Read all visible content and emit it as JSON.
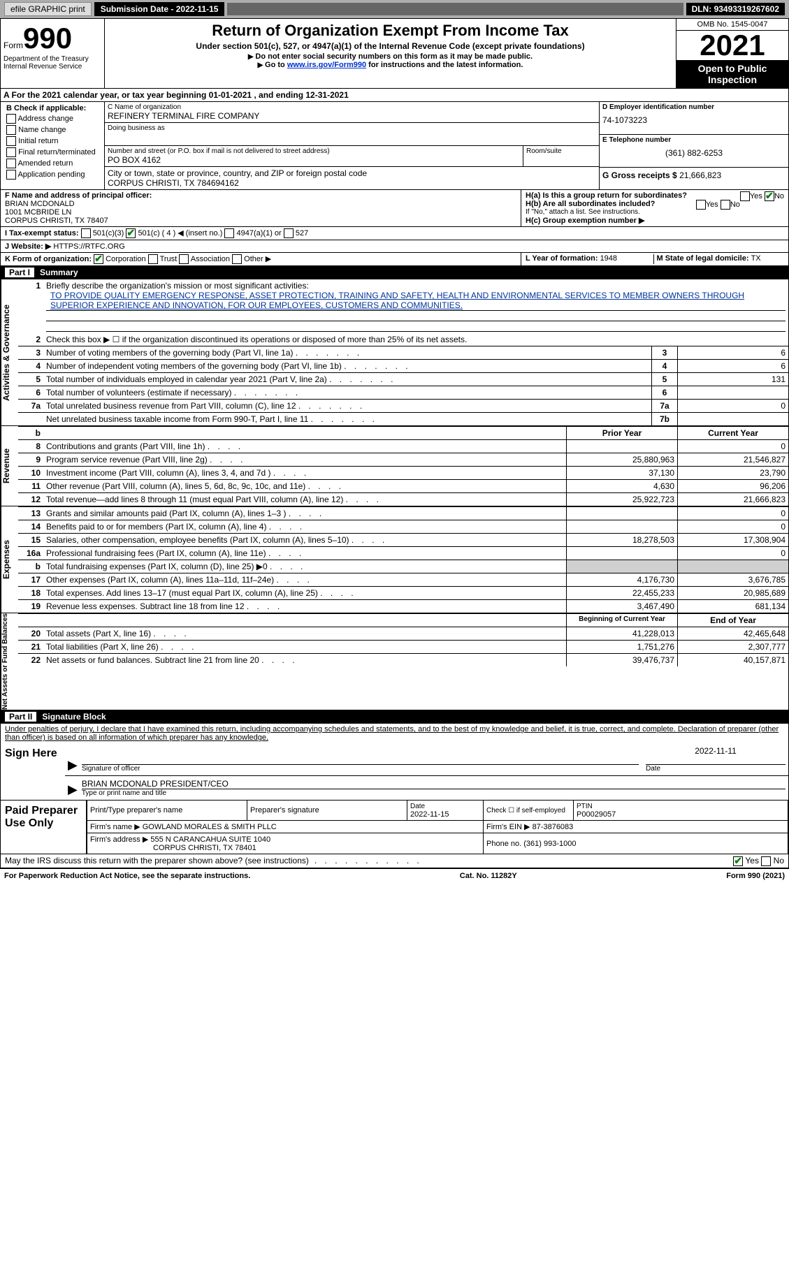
{
  "topbar": {
    "efile": "efile GRAPHIC print",
    "print_btn": "print",
    "sub_date_label": "Submission Date - ",
    "sub_date": "2022-11-15",
    "dln_label": "DLN: ",
    "dln": "93493319267602"
  },
  "header": {
    "form_label": "Form",
    "form_number": "990",
    "dept": "Department of the Treasury",
    "irs": "Internal Revenue Service",
    "title": "Return of Organization Exempt From Income Tax",
    "subtitle": "Under section 501(c), 527, or 4947(a)(1) of the Internal Revenue Code (except private foundations)",
    "note1": "Do not enter social security numbers on this form as it may be made public.",
    "note2_pre": "Go to ",
    "note2_link": "www.irs.gov/Form990",
    "note2_post": " for instructions and the latest information.",
    "omb": "OMB No. 1545-0047",
    "year": "2021",
    "otpi": "Open to Public Inspection"
  },
  "period": {
    "line": "A For the 2021 calendar year, or tax year beginning 01-01-2021   , and ending 12-31-2021"
  },
  "blockB": {
    "label": "B Check if applicable:",
    "items": [
      "Address change",
      "Name change",
      "Initial return",
      "Final return/terminated",
      "Amended return",
      "Application pending"
    ]
  },
  "blockC": {
    "name_lbl": "C Name of organization",
    "name": "REFINERY TERMINAL FIRE COMPANY",
    "dba_lbl": "Doing business as",
    "dba": "",
    "street_lbl": "Number and street (or P.O. box if mail is not delivered to street address)",
    "room_lbl": "Room/suite",
    "street": "PO BOX 4162",
    "city_lbl": "City or town, state or province, country, and ZIP or foreign postal code",
    "city": "CORPUS CHRISTI, TX  784694162"
  },
  "blockD": {
    "ein_lbl": "D Employer identification number",
    "ein": "74-1073223",
    "phone_lbl": "E Telephone number",
    "phone": "(361) 882-6253",
    "gross_lbl": "G Gross receipts $ ",
    "gross": "21,666,823"
  },
  "blockF": {
    "lbl": "F Name and address of principal officer:",
    "name": "BRIAN MCDONALD",
    "addr1": "1001 MCBRIDE LN",
    "addr2": "CORPUS CHRISTI, TX  78407"
  },
  "blockH": {
    "ha_lbl": "H(a)  Is this a group return for subordinates?",
    "hb_lbl": "H(b)  Are all subordinates included?",
    "hb_note": "If \"No,\" attach a list. See instructions.",
    "hc_lbl": "H(c)  Group exemption number ▶",
    "yes": "Yes",
    "no": "No"
  },
  "taxExempt": {
    "lbl": "I  Tax-exempt status:",
    "o1": "501(c)(3)",
    "o2": "501(c) ( 4 ) ◀ (insert no.)",
    "o3": "4947(a)(1) or",
    "o4": "527"
  },
  "website": {
    "lbl": "J  Website: ▶",
    "val": "HTTPS://RTFC.ORG"
  },
  "blockK": {
    "lbl": "K Form of organization:",
    "o1": "Corporation",
    "o2": "Trust",
    "o3": "Association",
    "o4": "Other ▶"
  },
  "blockL": {
    "lbl": "L Year of formation: ",
    "val": "1948"
  },
  "blockM": {
    "lbl": "M State of legal domicile: ",
    "val": "TX"
  },
  "partI": {
    "num": "Part I",
    "title": "Summary"
  },
  "summary": {
    "side1": "Activities & Governance",
    "side2": "Revenue",
    "side3": "Expenses",
    "side4": "Net Assets or Fund Balances",
    "line1_lbl": "Briefly describe the organization's mission or most significant activities:",
    "mission": "TO PROVIDE QUALITY EMERGENCY RESPONSE, ASSET PROTECTION, TRAINING AND SAFETY, HEALTH AND ENVIRONMENTAL SERVICES TO MEMBER OWNERS THROUGH SUPERIOR EXPERIENCE AND INNOVATION, FOR OUR EMPLOYEES, CUSTOMERS AND COMMUNITIES.",
    "line2": "Check this box ▶ ☐ if the organization discontinued its operations or disposed of more than 25% of its net assets.",
    "rows": [
      {
        "n": "3",
        "t": "Number of voting members of the governing body (Part VI, line 1a)",
        "b": "3",
        "v": "6"
      },
      {
        "n": "4",
        "t": "Number of independent voting members of the governing body (Part VI, line 1b)",
        "b": "4",
        "v": "6"
      },
      {
        "n": "5",
        "t": "Total number of individuals employed in calendar year 2021 (Part V, line 2a)",
        "b": "5",
        "v": "131"
      },
      {
        "n": "6",
        "t": "Total number of volunteers (estimate if necessary)",
        "b": "6",
        "v": ""
      },
      {
        "n": "7a",
        "t": "Total unrelated business revenue from Part VIII, column (C), line 12",
        "b": "7a",
        "v": "0"
      },
      {
        "n": "",
        "t": "Net unrelated business taxable income from Form 990-T, Part I, line 11",
        "b": "7b",
        "v": ""
      }
    ],
    "py_hdr": "Prior Year",
    "cy_hdr": "Current Year",
    "rev_rows": [
      {
        "n": "8",
        "t": "Contributions and grants (Part VIII, line 1h)",
        "py": "",
        "cy": "0"
      },
      {
        "n": "9",
        "t": "Program service revenue (Part VIII, line 2g)",
        "py": "25,880,963",
        "cy": "21,546,827"
      },
      {
        "n": "10",
        "t": "Investment income (Part VIII, column (A), lines 3, 4, and 7d )",
        "py": "37,130",
        "cy": "23,790"
      },
      {
        "n": "11",
        "t": "Other revenue (Part VIII, column (A), lines 5, 6d, 8c, 9c, 10c, and 11e)",
        "py": "4,630",
        "cy": "96,206"
      },
      {
        "n": "12",
        "t": "Total revenue—add lines 8 through 11 (must equal Part VIII, column (A), line 12)",
        "py": "25,922,723",
        "cy": "21,666,823"
      }
    ],
    "exp_rows": [
      {
        "n": "13",
        "t": "Grants and similar amounts paid (Part IX, column (A), lines 1–3 )",
        "py": "",
        "cy": "0"
      },
      {
        "n": "14",
        "t": "Benefits paid to or for members (Part IX, column (A), line 4)",
        "py": "",
        "cy": "0"
      },
      {
        "n": "15",
        "t": "Salaries, other compensation, employee benefits (Part IX, column (A), lines 5–10)",
        "py": "18,278,503",
        "cy": "17,308,904"
      },
      {
        "n": "16a",
        "t": "Professional fundraising fees (Part IX, column (A), line 11e)",
        "py": "",
        "cy": "0"
      },
      {
        "n": "b",
        "t": "Total fundraising expenses (Part IX, column (D), line 25) ▶0",
        "py": "shade",
        "cy": "shade"
      },
      {
        "n": "17",
        "t": "Other expenses (Part IX, column (A), lines 11a–11d, 11f–24e)",
        "py": "4,176,730",
        "cy": "3,676,785"
      },
      {
        "n": "18",
        "t": "Total expenses. Add lines 13–17 (must equal Part IX, column (A), line 25)",
        "py": "22,455,233",
        "cy": "20,985,689"
      },
      {
        "n": "19",
        "t": "Revenue less expenses. Subtract line 18 from line 12",
        "py": "3,467,490",
        "cy": "681,134"
      }
    ],
    "by_hdr": "Beginning of Current Year",
    "ey_hdr": "End of Year",
    "net_rows": [
      {
        "n": "20",
        "t": "Total assets (Part X, line 16)",
        "py": "41,228,013",
        "cy": "42,465,648"
      },
      {
        "n": "21",
        "t": "Total liabilities (Part X, line 26)",
        "py": "1,751,276",
        "cy": "2,307,777"
      },
      {
        "n": "22",
        "t": "Net assets or fund balances. Subtract line 21 from line 20",
        "py": "39,476,737",
        "cy": "40,157,871"
      }
    ]
  },
  "partII": {
    "num": "Part II",
    "title": "Signature Block"
  },
  "penalty": "Under penalties of perjury, I declare that I have examined this return, including accompanying schedules and statements, and to the best of my knowledge and belief, it is true, correct, and complete. Declaration of preparer (other than officer) is based on all information of which preparer has any knowledge.",
  "sign": {
    "here": "Sign Here",
    "sig_lbl": "Signature of officer",
    "date_lbl": "Date",
    "date": "2022-11-11",
    "name": "BRIAN MCDONALD  PRESIDENT/CEO",
    "name_lbl": "Type or print name and title"
  },
  "prep": {
    "lbl": "Paid Preparer Use Only",
    "h1": "Print/Type preparer's name",
    "h2": "Preparer's signature",
    "h3_lbl": "Date",
    "h3": "2022-11-15",
    "h4_lbl": "Check ☐ if self-employed",
    "h5_lbl": "PTIN",
    "h5": "P00029057",
    "firm_name_lbl": "Firm's name    ▶ ",
    "firm_name": "GOWLAND MORALES & SMITH PLLC",
    "firm_ein_lbl": "Firm's EIN ▶ ",
    "firm_ein": "87-3876083",
    "firm_addr_lbl": "Firm's address ▶ ",
    "firm_addr1": "555 N CARANCAHUA SUITE 1040",
    "firm_addr2": "CORPUS CHRISTI, TX  78401",
    "firm_phone_lbl": "Phone no. ",
    "firm_phone": "(361) 993-1000"
  },
  "irsDiscuss": {
    "q": "May the IRS discuss this return with the preparer shown above? (see instructions)",
    "yes": "Yes",
    "no": "No"
  },
  "footer": {
    "l": "For Paperwork Reduction Act Notice, see the separate instructions.",
    "c": "Cat. No. 11282Y",
    "r": "Form 990 (2021)"
  }
}
